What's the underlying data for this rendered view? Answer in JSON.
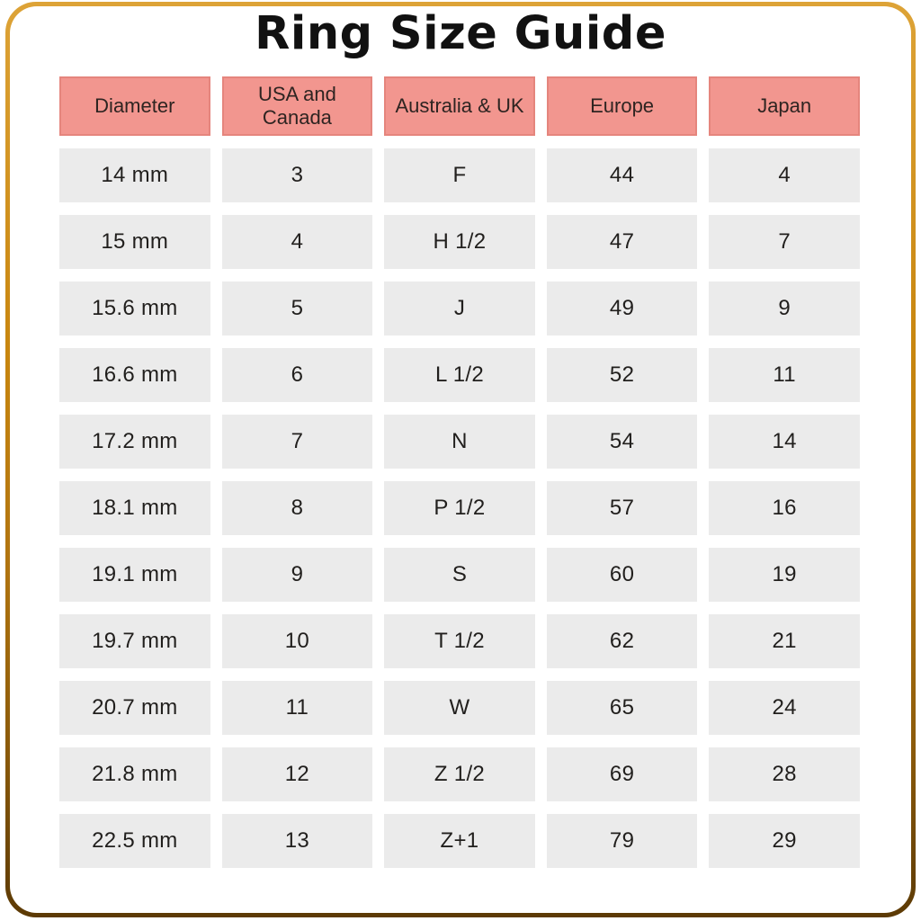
{
  "title": "Ring Size Guide",
  "chart_data": {
    "type": "table",
    "title": "Ring Size Guide",
    "columns": [
      "Diameter",
      "USA and\nCanada",
      "Australia & UK",
      "Europe",
      "Japan"
    ],
    "rows": [
      [
        "14 mm",
        "3",
        "F",
        "44",
        "4"
      ],
      [
        "15 mm",
        "4",
        "H 1/2",
        "47",
        "7"
      ],
      [
        "15.6 mm",
        "5",
        "J",
        "49",
        "9"
      ],
      [
        "16.6 mm",
        "6",
        "L 1/2",
        "52",
        "11"
      ],
      [
        "17.2 mm",
        "7",
        "N",
        "54",
        "14"
      ],
      [
        "18.1 mm",
        "8",
        "P 1/2",
        "57",
        "16"
      ],
      [
        "19.1 mm",
        "9",
        "S",
        "60",
        "19"
      ],
      [
        "19.7 mm",
        "10",
        "T 1/2",
        "62",
        "21"
      ],
      [
        "20.7 mm",
        "11",
        "W",
        "65",
        "24"
      ],
      [
        "21.8 mm",
        "12",
        "Z 1/2",
        "69",
        "28"
      ],
      [
        "22.5 mm",
        "13",
        "Z+1",
        "79",
        "29"
      ]
    ]
  },
  "style": {
    "header_bg": "#f2968f",
    "header_border": "#e5857d",
    "cell_bg": "#ebebeb",
    "text_color": "#211f1d",
    "frame_gold_light": "#dda337",
    "frame_gold_dark": "#5c3a05",
    "background": "#ffffff"
  }
}
